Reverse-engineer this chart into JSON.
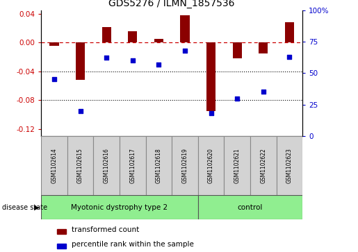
{
  "title": "GDS5276 / ILMN_1857536",
  "samples": [
    "GSM1102614",
    "GSM1102615",
    "GSM1102616",
    "GSM1102617",
    "GSM1102618",
    "GSM1102619",
    "GSM1102620",
    "GSM1102621",
    "GSM1102622",
    "GSM1102623"
  ],
  "red_values": [
    -0.005,
    -0.052,
    0.021,
    0.016,
    0.005,
    0.038,
    -0.095,
    -0.022,
    -0.015,
    0.028
  ],
  "blue_values": [
    45,
    20,
    62,
    60,
    57,
    68,
    18,
    30,
    35,
    63
  ],
  "ylim_left": [
    -0.13,
    0.045
  ],
  "ylim_right": [
    0,
    100
  ],
  "yticks_left": [
    0.04,
    0.0,
    -0.04,
    -0.08,
    -0.12
  ],
  "yticks_right": [
    100,
    75,
    50,
    25,
    0
  ],
  "groups": [
    {
      "label": "Myotonic dystrophy type 2",
      "start": 0,
      "end": 6
    },
    {
      "label": "control",
      "start": 6,
      "end": 10
    }
  ],
  "disease_state_label": "disease state",
  "legend_red": "transformed count",
  "legend_blue": "percentile rank within the sample",
  "bar_color": "#8B0000",
  "blue_color": "#0000CD",
  "dashed_line_color": "#CC0000",
  "grid_color": "#000000",
  "green_color": "#90EE90",
  "gray_color": "#D3D3D3",
  "figsize": [
    5.15,
    3.63
  ],
  "dpi": 100
}
